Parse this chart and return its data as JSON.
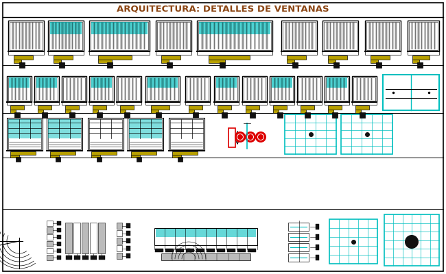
{
  "title": "ARQUITECTURA: DETALLES DE VENTANAS",
  "title_color": "#8B4513",
  "bg_color": "#FFFFFF",
  "line_color": "#000000",
  "cyan_color": "#00BFBF",
  "yellow_color": "#B8A000",
  "red_color": "#DD0000",
  "gray_color": "#888888",
  "light_gray": "#BBBBBB",
  "dark_color": "#111111",
  "figsize": [
    6.5,
    4.0
  ],
  "dpi": 100
}
